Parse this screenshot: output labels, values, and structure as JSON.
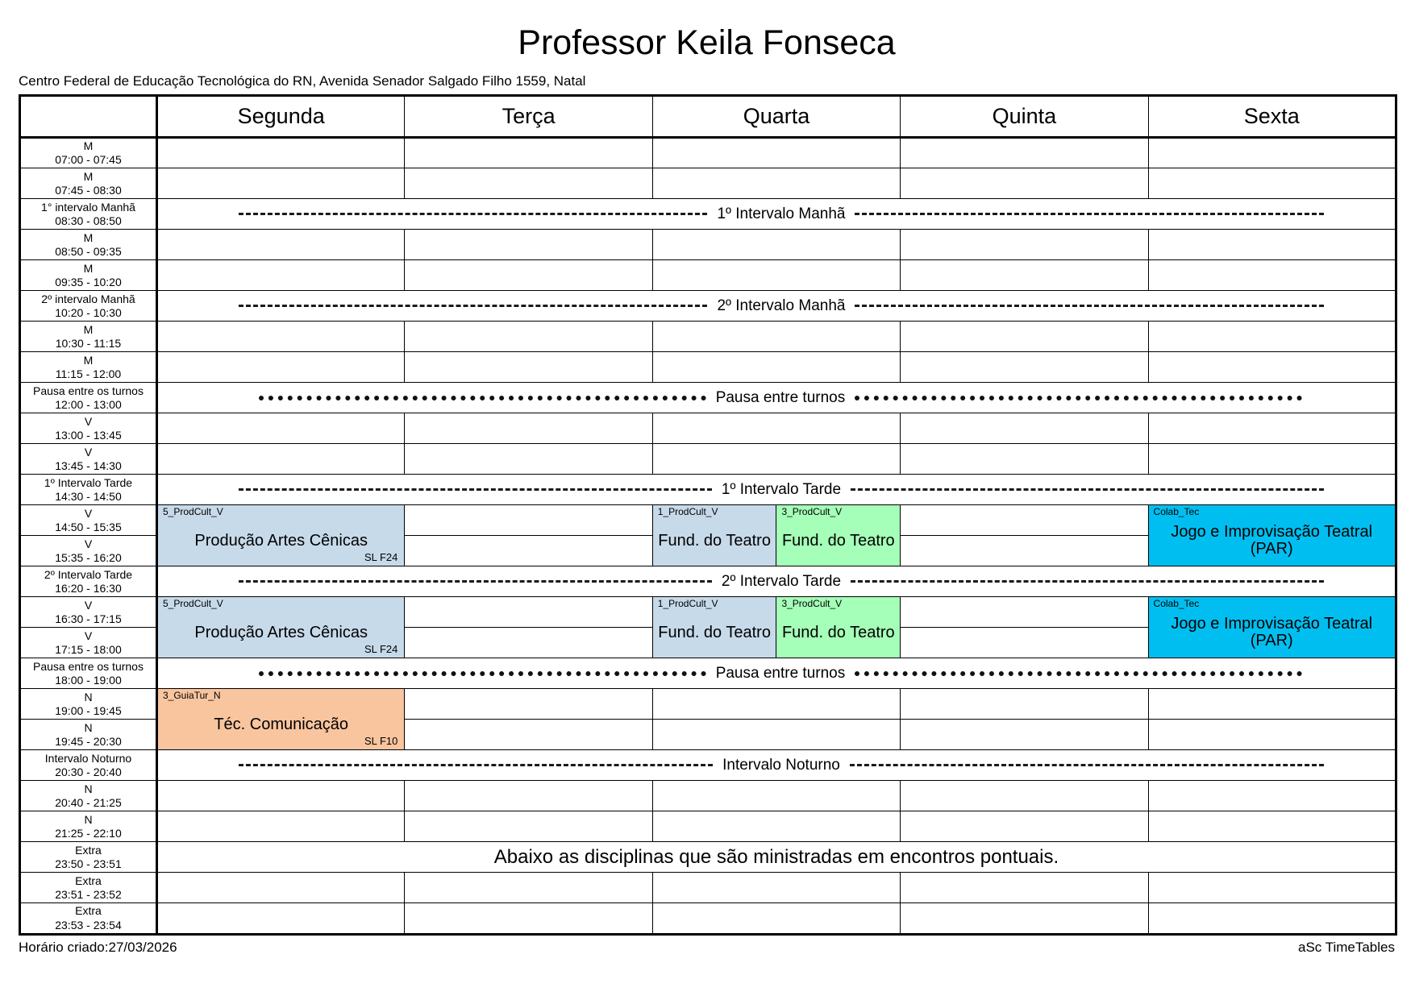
{
  "page": {
    "title": "Professor Keila Fonseca",
    "subtitle": "Centro Federal de Educação Tecnológica do RN, Avenida Senador Salgado Filho 1559, Natal",
    "footer_left": "Horário criado:27/03/2026",
    "footer_right": "aSc TimeTables"
  },
  "days": [
    "Segunda",
    "Terça",
    "Quarta",
    "Quinta",
    "Sexta"
  ],
  "colors": {
    "blue": "#C7DAEA",
    "green": "#A5FFB8",
    "cyan": "#00BFF0",
    "orange": "#F9C59F"
  },
  "rows": [
    {
      "type": "normal",
      "period": "M",
      "time": "07:00 - 07:45"
    },
    {
      "type": "normal",
      "period": "M",
      "time": "07:45 - 08:30"
    },
    {
      "type": "band",
      "style": "dashed",
      "label": "1º Intervalo Manhã",
      "period": "1° intervalo Manhã",
      "time": "08:30 - 08:50"
    },
    {
      "type": "normal",
      "period": "M",
      "time": "08:50 - 09:35"
    },
    {
      "type": "normal",
      "period": "M",
      "time": "09:35 - 10:20"
    },
    {
      "type": "band",
      "style": "dashed",
      "label": "2º Intervalo Manhã",
      "period": "2º intervalo Manhã",
      "time": "10:20 - 10:30"
    },
    {
      "type": "normal",
      "period": "M",
      "time": "10:30 - 11:15"
    },
    {
      "type": "normal",
      "period": "M",
      "time": "11:15 - 12:00"
    },
    {
      "type": "band",
      "style": "dotted",
      "label": "Pausa entre turnos",
      "period": "Pausa entre os turnos",
      "time": "12:00 - 13:00"
    },
    {
      "type": "normal",
      "period": "V",
      "time": "13:00 - 13:45"
    },
    {
      "type": "normal",
      "period": "V",
      "time": "13:45 - 14:30"
    },
    {
      "type": "band",
      "style": "dashed",
      "label": "1º Intervalo Tarde",
      "period": "1º Intervalo Tarde",
      "time": "14:30 - 14:50"
    },
    {
      "type": "lessons",
      "period": "V",
      "time": "14:50 - 15:35",
      "cells": [
        {
          "day": 0,
          "width": "full",
          "color": "blue",
          "tag": "5_ProdCult_V",
          "title": "Produção Artes Cênicas",
          "room": "SL F24"
        },
        {
          "day": 2,
          "width": "half",
          "color": "blue",
          "tag": "1_ProdCult_V",
          "title": "Fund. do Teatro"
        },
        {
          "day": 2,
          "width": "half",
          "color": "green",
          "tag": "3_ProdCult_V",
          "title": "Fund. do Teatro"
        },
        {
          "day": 4,
          "width": "full",
          "color": "cyan",
          "tag": "Colab_Tec",
          "title": "Jogo e Improvisação Teatral (PAR)"
        }
      ]
    },
    {
      "type": "cont",
      "period": "V",
      "time": "15:35 - 16:20"
    },
    {
      "type": "band",
      "style": "dashed",
      "label": "2º Intervalo Tarde",
      "period": "2º Intervalo Tarde",
      "time": "16:20 - 16:30"
    },
    {
      "type": "lessons",
      "period": "V",
      "time": "16:30 - 17:15",
      "cells": [
        {
          "day": 0,
          "width": "full",
          "color": "blue",
          "tag": "5_ProdCult_V",
          "title": "Produção Artes Cênicas",
          "room": "SL F24"
        },
        {
          "day": 2,
          "width": "half",
          "color": "blue",
          "tag": "1_ProdCult_V",
          "title": "Fund. do Teatro"
        },
        {
          "day": 2,
          "width": "half",
          "color": "green",
          "tag": "3_ProdCult_V",
          "title": "Fund. do Teatro"
        },
        {
          "day": 4,
          "width": "full",
          "color": "cyan",
          "tag": "Colab_Tec",
          "title": "Jogo e Improvisação Teatral (PAR)"
        }
      ]
    },
    {
      "type": "cont",
      "period": "V",
      "time": "17:15 - 18:00"
    },
    {
      "type": "band",
      "style": "dotted",
      "label": "Pausa entre turnos",
      "period": "Pausa entre os turnos",
      "time": "18:00 - 19:00"
    },
    {
      "type": "lessons",
      "period": "N",
      "time": "19:00 - 19:45",
      "cells": [
        {
          "day": 0,
          "width": "full",
          "color": "orange",
          "tag": "3_GuiaTur_N",
          "title": "Téc. Comunicação",
          "room": "SL F10"
        }
      ]
    },
    {
      "type": "cont",
      "period": "N",
      "time": "19:45 - 20:30"
    },
    {
      "type": "band",
      "style": "dashed",
      "label": "Intervalo Noturno",
      "period": "Intervalo Noturno",
      "time": "20:30 - 20:40"
    },
    {
      "type": "normal",
      "period": "N",
      "time": "20:40 - 21:25"
    },
    {
      "type": "normal",
      "period": "N",
      "time": "21:25 - 22:10"
    },
    {
      "type": "note",
      "label": "Abaixo as disciplinas que são ministradas em encontros pontuais.",
      "period": "Extra",
      "time": "23:50 - 23:51"
    },
    {
      "type": "normal",
      "period": "Extra",
      "time": "23:51 - 23:52"
    },
    {
      "type": "normal",
      "period": "Extra",
      "time": "23:53 - 23:54"
    }
  ]
}
